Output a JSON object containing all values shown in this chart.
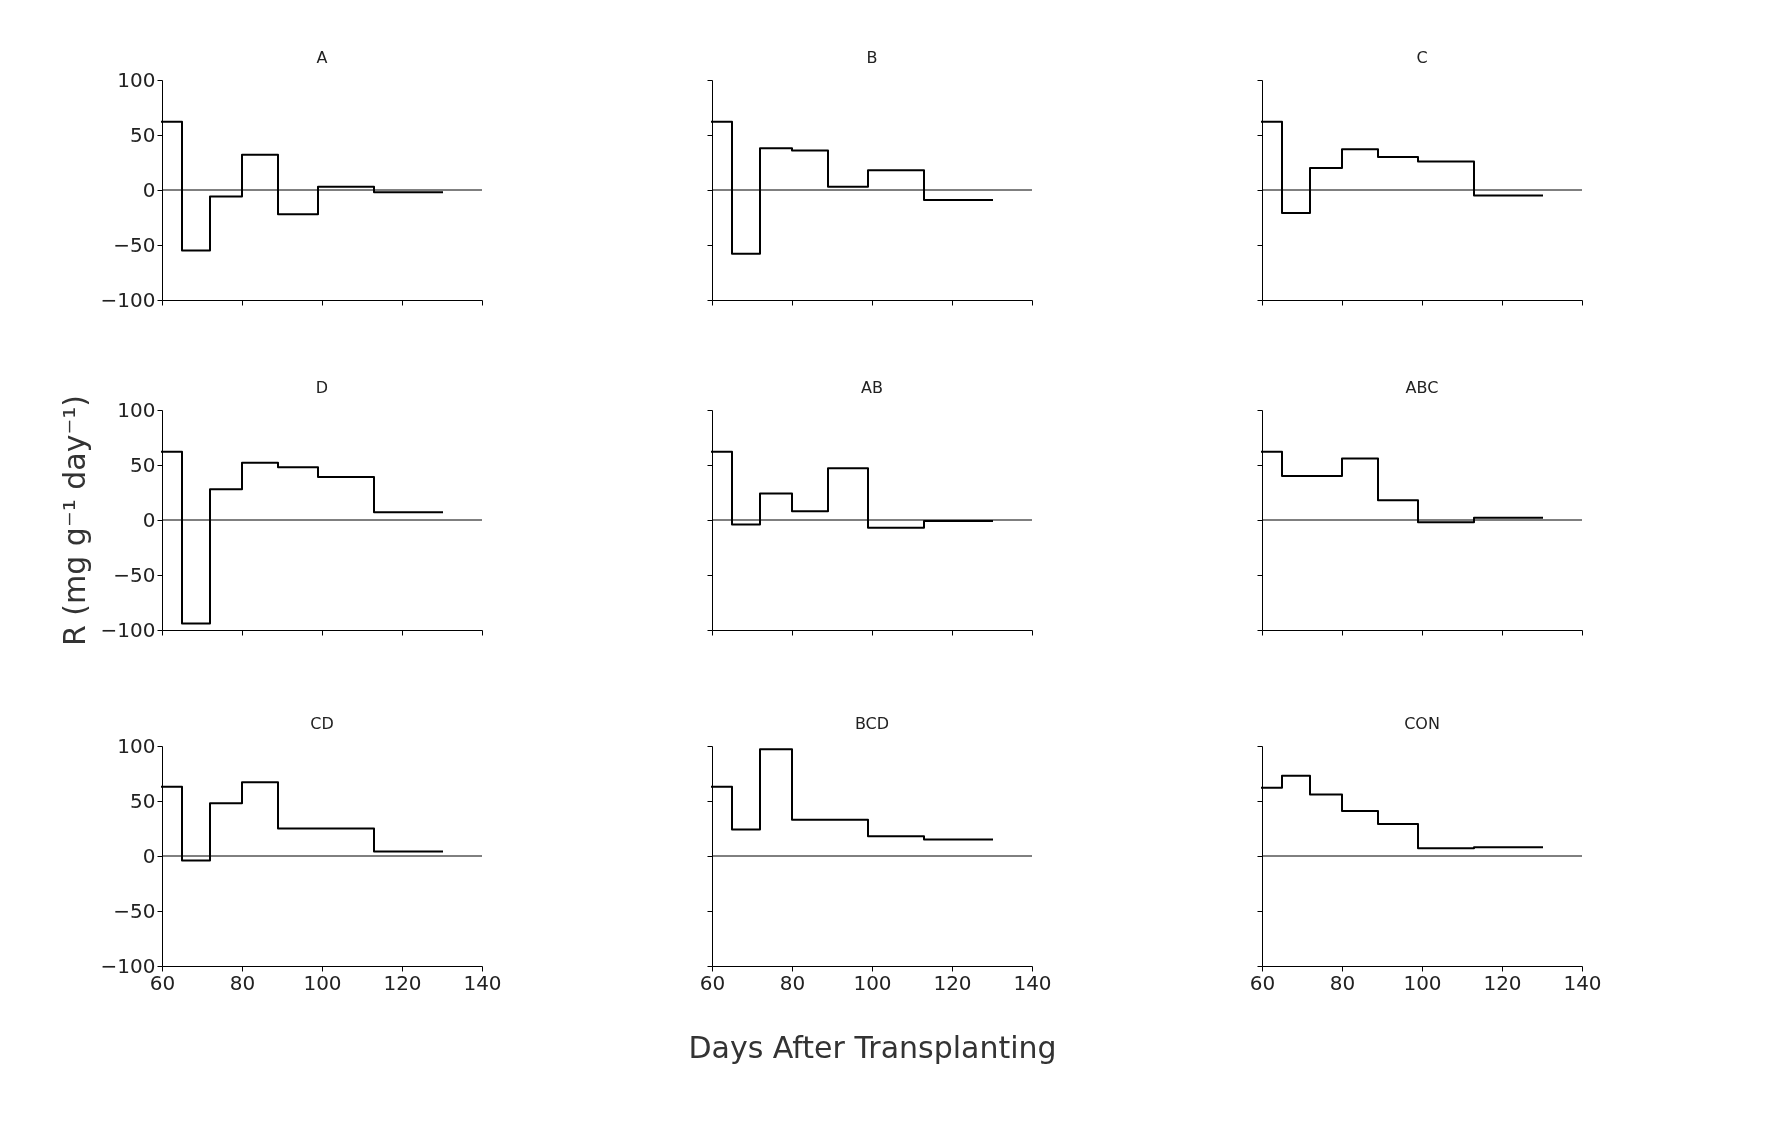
{
  "chart_data": [
    {
      "type": "step",
      "title": "A",
      "x": [
        60,
        65,
        72,
        80,
        89,
        99,
        113,
        130
      ],
      "series": [
        {
          "color": "#000000",
          "values": [
            62,
            -55,
            -6,
            32,
            -22,
            3,
            -2,
            -2
          ]
        }
      ],
      "xlim": [
        60,
        140
      ],
      "ylim": [
        -100,
        100
      ],
      "xticks": [
        60,
        80,
        100,
        120,
        140
      ],
      "yticks": [
        -100,
        -50,
        0,
        50,
        100
      ],
      "tick_labels": "y",
      "grid": false,
      "ref_lines": [
        {
          "axis": "y",
          "value": 0
        }
      ]
    },
    {
      "type": "step",
      "title": "B",
      "x": [
        60,
        65,
        72,
        80,
        89,
        99,
        113,
        130
      ],
      "series": [
        {
          "color": "#000000",
          "values": [
            62,
            -58,
            38,
            36,
            3,
            18,
            -9,
            -9
          ]
        }
      ],
      "xlim": [
        60,
        140
      ],
      "ylim": [
        -100,
        100
      ],
      "xticks": [
        60,
        80,
        100,
        120,
        140
      ],
      "yticks": [
        -100,
        -50,
        0,
        50,
        100
      ],
      "tick_labels": false,
      "grid": false,
      "ref_lines": [
        {
          "axis": "y",
          "value": 0
        }
      ]
    },
    {
      "type": "step",
      "title": "C",
      "x": [
        60,
        65,
        72,
        80,
        89,
        99,
        113,
        130
      ],
      "series": [
        {
          "color": "#000000",
          "values": [
            62,
            -21,
            20,
            37,
            30,
            26,
            -5,
            -5
          ]
        }
      ],
      "xlim": [
        60,
        140
      ],
      "ylim": [
        -100,
        100
      ],
      "xticks": [
        60,
        80,
        100,
        120,
        140
      ],
      "yticks": [
        -100,
        -50,
        0,
        50,
        100
      ],
      "tick_labels": false,
      "grid": false,
      "ref_lines": [
        {
          "axis": "y",
          "value": 0
        }
      ]
    },
    {
      "type": "step",
      "title": "D",
      "ylabel": "R (mg g⁻¹ day⁻¹)",
      "x": [
        60,
        65,
        72,
        80,
        89,
        99,
        113,
        130
      ],
      "series": [
        {
          "color": "#000000",
          "values": [
            62,
            -94,
            28,
            52,
            48,
            39,
            7,
            7
          ]
        }
      ],
      "xlim": [
        60,
        140
      ],
      "ylim": [
        -100,
        100
      ],
      "xticks": [
        60,
        80,
        100,
        120,
        140
      ],
      "yticks": [
        -100,
        -50,
        0,
        50,
        100
      ],
      "tick_labels": "y",
      "grid": false,
      "ref_lines": [
        {
          "axis": "y",
          "value": 0
        }
      ]
    },
    {
      "type": "step",
      "title": "AB",
      "x": [
        60,
        65,
        72,
        80,
        89,
        99,
        113,
        130
      ],
      "series": [
        {
          "color": "#000000",
          "values": [
            62,
            -4,
            24,
            8,
            47,
            -7,
            -1,
            -1
          ]
        }
      ],
      "xlim": [
        60,
        140
      ],
      "ylim": [
        -100,
        100
      ],
      "xticks": [
        60,
        80,
        100,
        120,
        140
      ],
      "yticks": [
        -100,
        -50,
        0,
        50,
        100
      ],
      "tick_labels": false,
      "grid": false,
      "ref_lines": [
        {
          "axis": "y",
          "value": 0
        }
      ]
    },
    {
      "type": "step",
      "title": "ABC",
      "x": [
        60,
        65,
        80,
        89,
        99,
        113,
        130
      ],
      "series": [
        {
          "color": "#000000",
          "values": [
            62,
            40,
            56,
            18,
            -2,
            2,
            2
          ]
        }
      ],
      "xlim": [
        60,
        140
      ],
      "ylim": [
        -100,
        100
      ],
      "xticks": [
        60,
        80,
        100,
        120,
        140
      ],
      "yticks": [
        -100,
        -50,
        0,
        50,
        100
      ],
      "tick_labels": false,
      "grid": false,
      "ref_lines": [
        {
          "axis": "y",
          "value": 0
        }
      ]
    },
    {
      "type": "step",
      "title": "CD",
      "x": [
        60,
        65,
        72,
        80,
        89,
        113,
        130
      ],
      "series": [
        {
          "color": "#000000",
          "values": [
            63,
            -4,
            48,
            67,
            25,
            4,
            4
          ]
        }
      ],
      "xlim": [
        60,
        140
      ],
      "ylim": [
        -100,
        100
      ],
      "xticks": [
        60,
        80,
        100,
        120,
        140
      ],
      "yticks": [
        -100,
        -50,
        0,
        50,
        100
      ],
      "grid": false,
      "ref_lines": [
        {
          "axis": "y",
          "value": 0
        }
      ]
    },
    {
      "type": "step",
      "title": "BCD",
      "xlabel": "Days After Transplanting",
      "x": [
        60,
        65,
        72,
        80,
        99,
        113,
        130
      ],
      "series": [
        {
          "color": "#000000",
          "values": [
            63,
            24,
            97,
            33,
            18,
            15,
            15
          ]
        }
      ],
      "xlim": [
        60,
        140
      ],
      "ylim": [
        -100,
        100
      ],
      "xticks": [
        60,
        80,
        100,
        120,
        140
      ],
      "yticks": [
        -100,
        -50,
        0,
        50,
        100
      ],
      "tick_labels": "x",
      "grid": false,
      "ref_lines": [
        {
          "axis": "y",
          "value": 0
        }
      ]
    },
    {
      "type": "step",
      "title": "CON",
      "x": [
        60,
        65,
        72,
        80,
        89,
        99,
        113,
        130
      ],
      "series": [
        {
          "color": "#000000",
          "values": [
            62,
            73,
            56,
            41,
            29,
            7,
            8,
            8
          ]
        }
      ],
      "xlim": [
        60,
        140
      ],
      "ylim": [
        -100,
        100
      ],
      "xticks": [
        60,
        80,
        100,
        120,
        140
      ],
      "yticks": [
        -100,
        -50,
        0,
        50,
        100
      ],
      "tick_labels": "x",
      "grid": false,
      "ref_lines": [
        {
          "axis": "y",
          "value": 0
        }
      ]
    }
  ]
}
